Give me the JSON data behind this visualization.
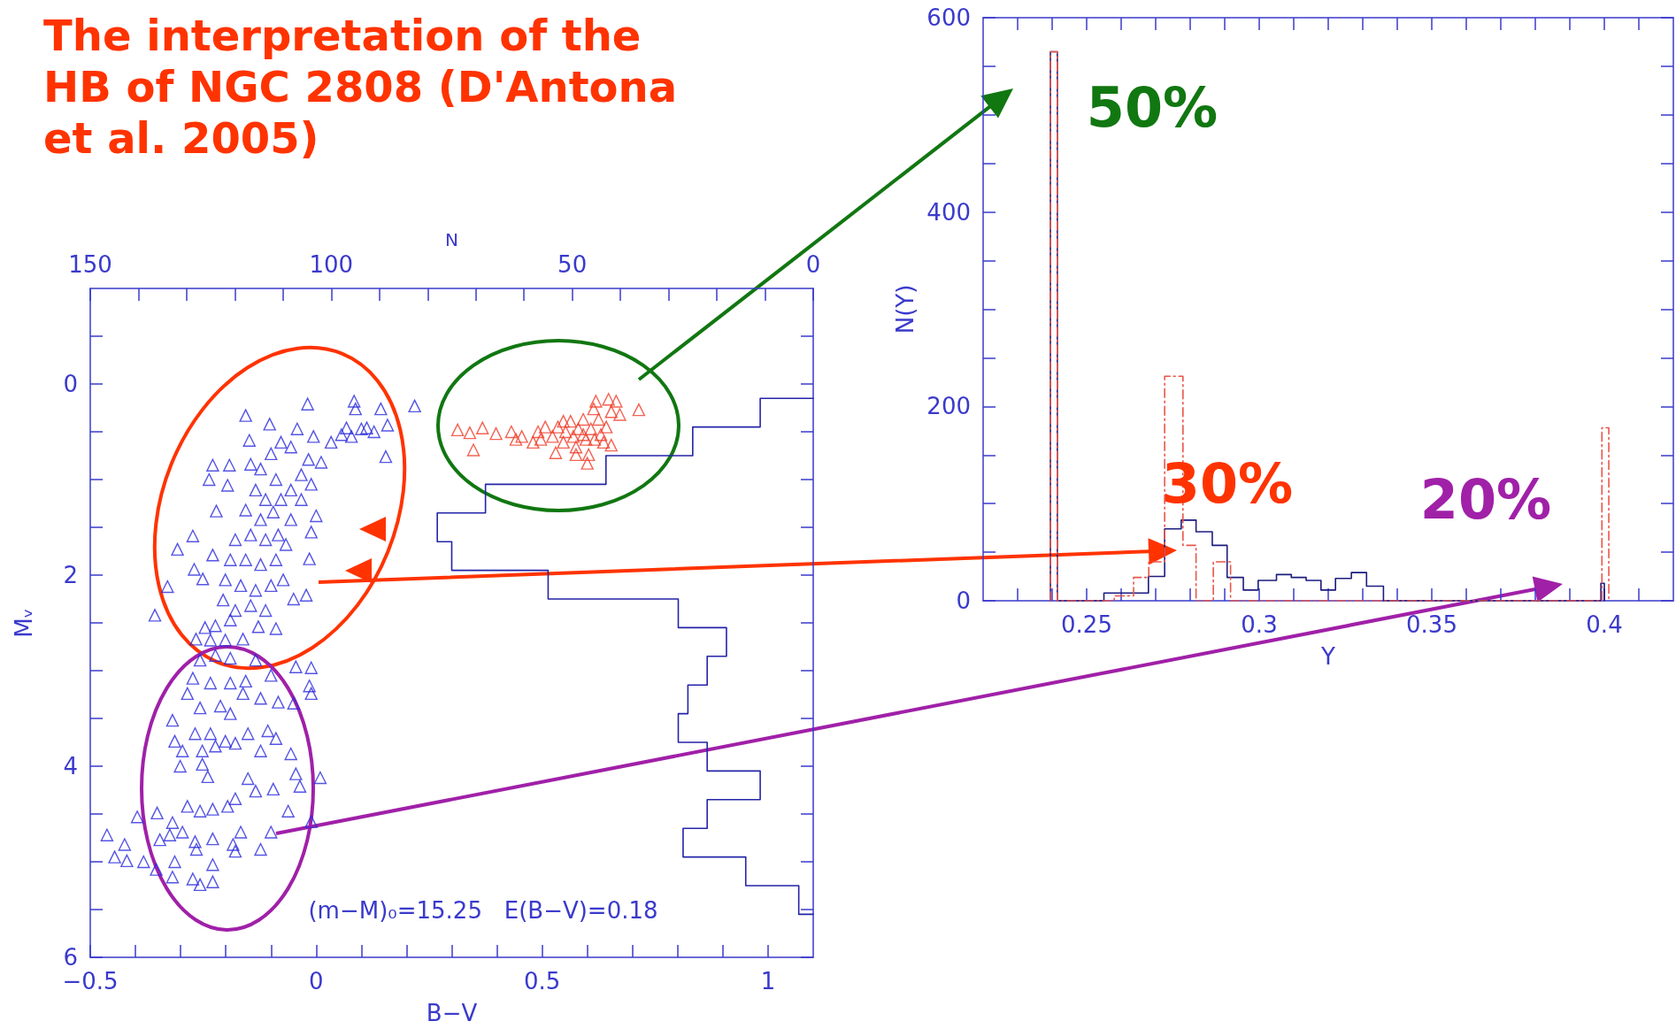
{
  "chart_data": [
    {
      "type": "scatter",
      "title": "The interpretation of the HB of NGC 2808 (D'Antona et al. 2005)",
      "xlabel": "B−V",
      "ylabel": "Mᵥ",
      "x2label": "N",
      "xlim": [
        -0.5,
        1.1
      ],
      "xticks": [
        {
          "value": -0.5,
          "label": "−0.5"
        },
        {
          "value": -0.4,
          "label": null
        },
        {
          "value": -0.3,
          "label": null
        },
        {
          "value": -0.2,
          "label": null
        },
        {
          "value": -0.1,
          "label": null
        },
        0,
        {
          "value": 0.1,
          "label": null
        },
        {
          "value": 0.2,
          "label": null
        },
        {
          "value": 0.3,
          "label": null
        },
        {
          "value": 0.4,
          "label": null
        },
        0.5,
        {
          "value": 0.6,
          "label": null
        },
        {
          "value": 0.7,
          "label": null
        },
        {
          "value": 0.8,
          "label": null
        },
        {
          "value": 0.9,
          "label": null
        },
        1
      ],
      "ylim": [
        6,
        -1
      ],
      "yticks": [
        {
          "value": -0.5,
          "label": null
        },
        0,
        {
          "value": 0.5,
          "label": null
        },
        {
          "value": 1,
          "label": null
        },
        {
          "value": 1.5,
          "label": null
        },
        2,
        {
          "value": 2.5,
          "label": null
        },
        {
          "value": 3,
          "label": null
        },
        {
          "value": 3.5,
          "label": null
        },
        4,
        {
          "value": 4.5,
          "label": null
        },
        {
          "value": 5,
          "label": null
        },
        {
          "value": 5.5,
          "label": null
        },
        6
      ],
      "x2lim": [
        150,
        0
      ],
      "x2ticks": [
        150,
        {
          "value": 140,
          "label": null
        },
        {
          "value": 130,
          "label": null
        },
        {
          "value": 120,
          "label": null
        },
        {
          "value": 110,
          "label": null
        },
        100,
        {
          "value": 90,
          "label": null
        },
        {
          "value": 80,
          "label": null
        },
        {
          "value": 70,
          "label": null
        },
        {
          "value": 60,
          "label": null
        },
        50,
        {
          "value": 40,
          "label": null
        },
        {
          "value": 30,
          "label": null
        },
        {
          "value": 20,
          "label": null
        },
        {
          "value": 10,
          "label": null
        },
        0
      ],
      "marker": "triangle",
      "series": [
        {
          "color": "#2b2bdd",
          "x": [
            0.084,
            0.087,
            0.143,
            0.218,
            0.158,
            0.128,
            0.1,
            0.067,
            0.078,
            0.033,
            0.154,
            0.056,
            0.112,
            -0.019,
            -0.156,
            -0.103,
            -0.148,
            -0.042,
            -0.006,
            0.011,
            -0.078,
            -0.229,
            -0.192,
            -0.237,
            -0.196,
            -0.221,
            -0.273,
            -0.307,
            -0.229,
            -0.27,
            -0.251,
            -0.329,
            -0.357,
            -0.145,
            -0.1,
            -0.056,
            -0.017,
            -0.011,
            -0.033,
            0.0,
            -0.011,
            -0.015,
            -0.022,
            -0.05,
            -0.089,
            -0.123,
            -0.134,
            -0.112,
            -0.089,
            -0.156,
            -0.123,
            -0.095,
            -0.078,
            -0.056,
            -0.033,
            -0.179,
            -0.145,
            -0.112,
            -0.084,
            -0.056,
            -0.19,
            -0.156,
            -0.123,
            -0.089,
            -0.067,
            -0.201,
            -0.167,
            -0.134,
            -0.1,
            -0.073,
            -0.206,
            -0.179,
            -0.145,
            -0.112,
            -0.223,
            -0.19,
            -0.246,
            -0.266,
            -0.234,
            -0.201,
            -0.162,
            -0.128,
            -0.257,
            -0.223,
            -0.19,
            -0.134,
            -0.045,
            -0.011,
            -0.273,
            -0.234,
            -0.19,
            -0.156,
            -0.1,
            -0.015,
            -0.011,
            -0.285,
            -0.257,
            -0.212,
            -0.19,
            -0.162,
            -0.123,
            -0.084,
            -0.05,
            -0.318,
            -0.268,
            -0.234,
            -0.201,
            -0.151,
            -0.107,
            -0.313,
            -0.296,
            -0.252,
            -0.223,
            -0.179,
            -0.123,
            -0.089,
            -0.056,
            -0.301,
            -0.252,
            -0.24,
            -0.151,
            -0.134,
            -0.095,
            -0.045,
            -0.036,
            0.009,
            -0.062,
            -0.229,
            -0.196,
            -0.179,
            -0.257,
            -0.285,
            -0.352,
            -0.396,
            -0.318,
            -0.324,
            -0.296,
            -0.346,
            -0.268,
            -0.229,
            -0.167,
            -0.1,
            -0.011,
            -0.184,
            -0.123,
            -0.463,
            -0.424,
            -0.446,
            -0.419,
            -0.382,
            -0.354,
            -0.313,
            -0.265,
            -0.229,
            -0.318,
            -0.273,
            -0.257,
            -0.229,
            -0.179
          ],
          "values": [
            0.18,
            0.26,
            0.26,
            0.23,
            0.43,
            0.5,
            0.47,
            0.46,
            0.55,
            0.61,
            0.76,
            0.53,
            0.46,
            0.21,
            0.33,
            0.42,
            0.59,
            0.47,
            0.55,
            0.82,
            0.61,
            0.85,
            0.85,
            1.0,
            1.06,
            1.33,
            1.59,
            1.73,
            1.79,
            1.94,
            2.04,
            2.12,
            2.42,
            0.84,
            0.73,
            0.66,
            0.79,
            1.05,
            1.21,
            1.38,
            1.55,
            1.83,
            2.21,
            2.25,
            2.56,
            0.89,
            1.11,
            1.21,
            1.0,
            1.32,
            1.42,
            1.34,
            1.21,
            1.11,
            0.95,
            1.63,
            1.58,
            1.63,
            1.58,
            1.42,
            1.84,
            1.84,
            1.89,
            1.84,
            1.68,
            2.05,
            2.11,
            2.16,
            2.11,
            2.05,
            2.26,
            2.37,
            2.32,
            2.37,
            2.53,
            2.47,
            2.55,
            2.67,
            2.68,
            2.68,
            2.67,
            2.54,
            2.89,
            2.84,
            2.87,
            2.89,
            2.96,
            2.97,
            3.08,
            3.13,
            3.13,
            3.11,
            3.05,
            3.16,
            3.24,
            3.24,
            3.39,
            3.37,
            3.45,
            3.24,
            3.29,
            3.33,
            3.34,
            3.52,
            3.66,
            3.66,
            3.74,
            3.66,
            3.63,
            3.74,
            3.84,
            3.84,
            3.79,
            3.76,
            3.84,
            3.71,
            3.87,
            4.0,
            3.98,
            4.11,
            4.13,
            4.26,
            4.24,
            4.08,
            4.21,
            4.12,
            4.47,
            4.45,
            4.42,
            4.34,
            4.47,
            4.42,
            4.49,
            4.53,
            4.59,
            4.72,
            4.69,
            4.77,
            4.79,
            4.76,
            4.69,
            4.69,
            4.58,
            4.82,
            4.87,
            4.72,
            4.82,
            4.95,
            4.99,
            5.0,
            5.08,
            5.0,
            4.87,
            5.03,
            5.16,
            5.18,
            5.24,
            5.21,
            4.89
          ]
        },
        {
          "color": "#f03c28",
          "x": [
            0.313,
            0.34,
            0.348,
            0.368,
            0.398,
            0.432,
            0.455,
            0.48,
            0.491,
            0.507,
            0.523,
            0.535,
            0.547,
            0.552,
            0.563,
            0.569,
            0.575,
            0.58,
            0.591,
            0.597,
            0.603,
            0.608,
            0.614,
            0.616,
            0.625,
            0.63,
            0.636,
            0.642,
            0.647,
            0.653,
            0.653,
            0.664,
            0.672,
            0.714,
            0.6,
            0.53,
            0.575,
            0.547,
            0.442,
            0.497,
            0.591,
            0.619
          ],
          "values": [
            0.48,
            0.51,
            0.69,
            0.46,
            0.52,
            0.5,
            0.55,
            0.61,
            0.5,
            0.45,
            0.55,
            0.45,
            0.61,
            0.5,
            0.39,
            0.55,
            0.66,
            0.47,
            0.37,
            0.58,
            0.74,
            0.47,
            0.26,
            0.58,
            0.37,
            0.53,
            0.61,
            0.45,
            0.16,
            0.29,
            0.64,
            0.18,
            0.32,
            0.27,
            0.83,
            0.72,
            0.74,
            0.39,
            0.58,
            0.58,
            0.53,
            0.18
          ]
        },
        {
          "type": "line",
          "axis": "x2",
          "marker": "none",
          "color": "#2424a8",
          "x": [
            0,
            11,
            11,
            25,
            25,
            43,
            43,
            68,
            68,
            78,
            78,
            75,
            75,
            55,
            55,
            28,
            28,
            18,
            18,
            22,
            22,
            26,
            26,
            28,
            28,
            22,
            22,
            11,
            11,
            22,
            22,
            27,
            27,
            14,
            14,
            3,
            3,
            0
          ],
          "values": [
            0.15,
            0.15,
            0.45,
            0.45,
            0.75,
            0.75,
            1.05,
            1.05,
            1.35,
            1.35,
            1.65,
            1.65,
            1.95,
            1.95,
            2.25,
            2.25,
            2.55,
            2.55,
            2.85,
            2.85,
            3.15,
            3.15,
            3.45,
            3.45,
            3.75,
            3.75,
            4.05,
            4.05,
            4.35,
            4.35,
            4.65,
            4.65,
            4.95,
            4.95,
            5.25,
            5.25,
            5.55,
            5.55
          ]
        }
      ],
      "annotations": [
        "(m−M)₀=15.25   E(B−V)=0.18"
      ]
    },
    {
      "type": "line",
      "xlabel": "Y",
      "ylabel": "N(Y)",
      "xlim": [
        0.22,
        0.42
      ],
      "xticks": [
        {
          "value": 0.23,
          "label": null
        },
        {
          "value": 0.24,
          "label": null
        },
        0.25,
        {
          "value": 0.26,
          "label": null
        },
        {
          "value": 0.27,
          "label": null
        },
        {
          "value": 0.28,
          "label": null
        },
        {
          "value": 0.29,
          "label": null
        },
        0.3,
        {
          "value": 0.31,
          "label": null
        },
        {
          "value": 0.32,
          "label": null
        },
        {
          "value": 0.33,
          "label": null
        },
        {
          "value": 0.34,
          "label": null
        },
        0.35,
        {
          "value": 0.36,
          "label": null
        },
        {
          "value": 0.37,
          "label": null
        },
        {
          "value": 0.38,
          "label": null
        },
        {
          "value": 0.39,
          "label": null
        },
        0.4,
        {
          "value": 0.41,
          "label": null
        }
      ],
      "ylim": [
        0,
        600
      ],
      "yticks": [
        0,
        {
          "value": 50,
          "label": null
        },
        {
          "value": 100,
          "label": null
        },
        {
          "value": 150,
          "label": null
        },
        200,
        {
          "value": 250,
          "label": null
        },
        {
          "value": 300,
          "label": null
        },
        {
          "value": 350,
          "label": null
        },
        400,
        {
          "value": 450,
          "label": null
        },
        {
          "value": 500,
          "label": null
        },
        {
          "value": 550,
          "label": null
        },
        600
      ],
      "series": [
        {
          "color": "#1c1c80",
          "x": [
            0.2395,
            0.2395,
            0.2415,
            0.2415,
            0.255,
            0.255,
            0.2679,
            0.2679,
            0.2726,
            0.2726,
            0.2774,
            0.2774,
            0.2817,
            0.2817,
            0.2864,
            0.2864,
            0.2907,
            0.2907,
            0.2954,
            0.2954,
            0.2997,
            0.2997,
            0.305,
            0.305,
            0.3093,
            0.3093,
            0.3136,
            0.3136,
            0.3179,
            0.3179,
            0.3221,
            0.3221,
            0.3267,
            0.3267,
            0.3311,
            0.3311,
            0.336,
            0.336,
            0.399,
            0.399,
            0.4,
            0.4
          ],
          "values": [
            0,
            565,
            565,
            0,
            0,
            8,
            8,
            25,
            25,
            74,
            74,
            83,
            83,
            71,
            71,
            57,
            57,
            24,
            24,
            11,
            11,
            21,
            21,
            27,
            27,
            24,
            24,
            21,
            21,
            11,
            11,
            23,
            23,
            29,
            29,
            15,
            15,
            0,
            0,
            18,
            18,
            0
          ]
        },
        {
          "color": "#e8564a",
          "line_style": "dashdot",
          "x": [
            0.2395,
            0.2395,
            0.2415,
            0.2415,
            0.258,
            0.258,
            0.2636,
            0.2636,
            0.268,
            0.268,
            0.2726,
            0.2726,
            0.2779,
            0.2779,
            0.2817,
            0.2817,
            0.2867,
            0.2867,
            0.2917,
            0.2917,
            0.3993,
            0.3993,
            0.4013,
            0.4013
          ],
          "values": [
            0,
            565,
            565,
            0,
            0,
            5,
            5,
            24,
            24,
            40,
            40,
            231,
            231,
            57,
            57,
            0,
            0,
            40,
            40,
            0,
            0,
            178,
            178,
            0
          ]
        }
      ],
      "annotations": [
        "50%",
        "30%",
        "20%"
      ]
    }
  ]
}
